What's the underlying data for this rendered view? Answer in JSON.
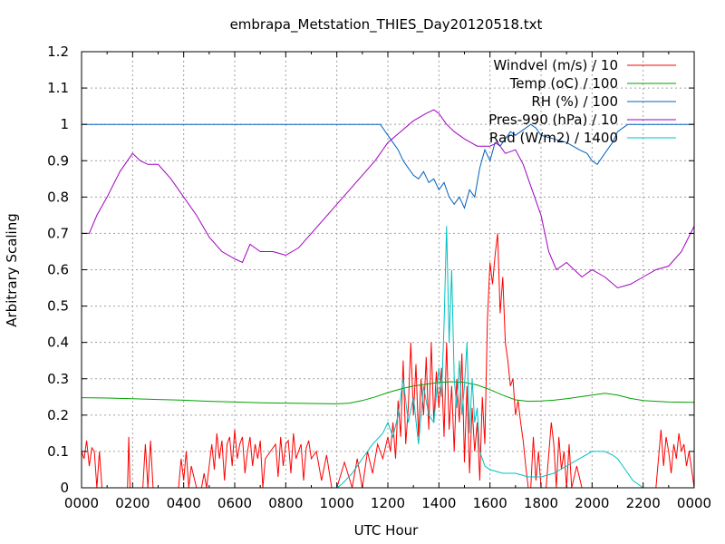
{
  "chart_data": {
    "type": "line",
    "title": "embrapa_Metstation_THIES_Day20120518.txt",
    "xlabel": "UTC Hour",
    "ylabel": "Arbitrary Scaling",
    "xlim": [
      0,
      24
    ],
    "ylim": [
      0,
      1.2
    ],
    "grid": true,
    "legend_position": "top-right",
    "x_ticks": [
      {
        "value": 0,
        "label": "0000"
      },
      {
        "value": 2,
        "label": "0200"
      },
      {
        "value": 4,
        "label": "0400"
      },
      {
        "value": 6,
        "label": "0600"
      },
      {
        "value": 8,
        "label": "0800"
      },
      {
        "value": 10,
        "label": "1000"
      },
      {
        "value": 12,
        "label": "1200"
      },
      {
        "value": 14,
        "label": "1400"
      },
      {
        "value": 16,
        "label": "1600"
      },
      {
        "value": 18,
        "label": "1800"
      },
      {
        "value": 20,
        "label": "2000"
      },
      {
        "value": 22,
        "label": "2200"
      },
      {
        "value": 24,
        "label": "0000"
      }
    ],
    "y_ticks": [
      {
        "value": 0,
        "label": "0"
      },
      {
        "value": 0.1,
        "label": "0.1"
      },
      {
        "value": 0.2,
        "label": "0.2"
      },
      {
        "value": 0.3,
        "label": "0.3"
      },
      {
        "value": 0.4,
        "label": "0.4"
      },
      {
        "value": 0.5,
        "label": "0.5"
      },
      {
        "value": 0.6,
        "label": "0.6"
      },
      {
        "value": 0.7,
        "label": "0.7"
      },
      {
        "value": 0.8,
        "label": "0.8"
      },
      {
        "value": 0.9,
        "label": "0.9"
      },
      {
        "value": 1,
        "label": "1"
      },
      {
        "value": 1.1,
        "label": "1.1"
      },
      {
        "value": 1.2,
        "label": "1.2"
      }
    ],
    "series": [
      {
        "name": "Windvel (m/s) / 10",
        "color": "#ff0000",
        "x": [
          0,
          0.1,
          0.2,
          0.3,
          0.4,
          0.5,
          0.6,
          0.7,
          0.8,
          1.0,
          1.2,
          1.5,
          1.8,
          1.85,
          1.9,
          2.0,
          2.2,
          2.4,
          2.5,
          2.6,
          2.7,
          2.8,
          3.0,
          3.3,
          3.6,
          3.8,
          3.9,
          4.0,
          4.1,
          4.2,
          4.3,
          4.5,
          4.7,
          4.8,
          4.9,
          5.0,
          5.1,
          5.2,
          5.3,
          5.4,
          5.5,
          5.6,
          5.7,
          5.8,
          5.9,
          6.0,
          6.1,
          6.2,
          6.3,
          6.4,
          6.5,
          6.6,
          6.7,
          6.8,
          6.9,
          7.0,
          7.1,
          7.2,
          7.4,
          7.6,
          7.7,
          7.8,
          7.9,
          8.0,
          8.1,
          8.2,
          8.3,
          8.4,
          8.5,
          8.6,
          8.7,
          8.8,
          8.9,
          9.0,
          9.2,
          9.4,
          9.6,
          9.8,
          10.0,
          10.3,
          10.6,
          10.8,
          11.0,
          11.2,
          11.4,
          11.6,
          11.8,
          12.0,
          12.1,
          12.2,
          12.3,
          12.4,
          12.5,
          12.6,
          12.7,
          12.8,
          12.9,
          13.0,
          13.1,
          13.2,
          13.3,
          13.4,
          13.5,
          13.6,
          13.7,
          13.8,
          13.9,
          14.0,
          14.1,
          14.2,
          14.3,
          14.4,
          14.5,
          14.6,
          14.7,
          14.8,
          14.9,
          15.0,
          15.1,
          15.2,
          15.3,
          15.4,
          15.5,
          15.6,
          15.7,
          15.8,
          15.9,
          16.0,
          16.1,
          16.2,
          16.3,
          16.4,
          16.5,
          16.6,
          16.7,
          16.8,
          16.9,
          17.0,
          17.1,
          17.2,
          17.3,
          17.4,
          17.5,
          17.6,
          17.7,
          17.8,
          17.9,
          18.0,
          18.2,
          18.4,
          18.5,
          18.6,
          18.7,
          18.8,
          18.9,
          19.0,
          19.1,
          19.2,
          19.4,
          19.6,
          19.8,
          20.0,
          20.2,
          20.5,
          21.0,
          21.5,
          22.0,
          22.5,
          22.7,
          22.8,
          22.9,
          23.0,
          23.1,
          23.2,
          23.3,
          23.4,
          23.5,
          23.6,
          23.7,
          23.8,
          24.0
        ],
        "y": [
          0.1,
          0.08,
          0.13,
          0.06,
          0.11,
          0.1,
          0.0,
          0.1,
          0.0,
          0.0,
          0.0,
          0.0,
          0.0,
          0.14,
          0.0,
          0.0,
          0.0,
          0.0,
          0.12,
          0.0,
          0.13,
          0.0,
          0.0,
          0.0,
          0.0,
          0.0,
          0.08,
          0.02,
          0.1,
          0.0,
          0.06,
          0.0,
          0.0,
          0.04,
          0.0,
          0.06,
          0.12,
          0.05,
          0.15,
          0.08,
          0.13,
          0.02,
          0.12,
          0.14,
          0.06,
          0.16,
          0.08,
          0.12,
          0.14,
          0.04,
          0.1,
          0.14,
          0.06,
          0.12,
          0.08,
          0.13,
          0.0,
          0.08,
          0.1,
          0.12,
          0.03,
          0.14,
          0.06,
          0.12,
          0.13,
          0.04,
          0.15,
          0.08,
          0.1,
          0.12,
          0.02,
          0.11,
          0.13,
          0.08,
          0.1,
          0.02,
          0.09,
          0.0,
          0.0,
          0.07,
          0.0,
          0.08,
          0.0,
          0.1,
          0.04,
          0.12,
          0.08,
          0.14,
          0.1,
          0.18,
          0.08,
          0.24,
          0.14,
          0.35,
          0.12,
          0.22,
          0.4,
          0.2,
          0.34,
          0.14,
          0.3,
          0.2,
          0.36,
          0.16,
          0.4,
          0.18,
          0.32,
          0.22,
          0.33,
          0.14,
          0.4,
          0.16,
          0.28,
          0.1,
          0.3,
          0.18,
          0.37,
          0.07,
          0.28,
          0.04,
          0.22,
          0.1,
          0.18,
          0.02,
          0.25,
          0.12,
          0.46,
          0.62,
          0.56,
          0.64,
          0.7,
          0.48,
          0.58,
          0.4,
          0.35,
          0.28,
          0.3,
          0.2,
          0.24,
          0.18,
          0.13,
          0.06,
          0.0,
          0.0,
          0.14,
          0.02,
          0.1,
          0.0,
          0.0,
          0.18,
          0.12,
          0.0,
          0.14,
          0.05,
          0.1,
          0.0,
          0.12,
          0.0,
          0.06,
          0.0,
          0.0,
          0.0,
          0.0,
          0.0,
          0.0,
          0.0,
          0.0,
          0.0,
          0.16,
          0.06,
          0.14,
          0.1,
          0.04,
          0.12,
          0.08,
          0.15,
          0.1,
          0.12,
          0.06,
          0.1,
          0.0
        ]
      },
      {
        "name": "Temp (oC) / 100",
        "color": "#00a000",
        "x": [
          0,
          1,
          2,
          3,
          4,
          5,
          6,
          7,
          8,
          9,
          10,
          10.5,
          11,
          11.5,
          12,
          12.5,
          13,
          13.5,
          14,
          14.5,
          15,
          15.5,
          16,
          16.5,
          17,
          17.5,
          18,
          18.5,
          19,
          19.5,
          20,
          20.5,
          21,
          21.5,
          22,
          22.5,
          23,
          24
        ],
        "y": [
          0.248,
          0.247,
          0.245,
          0.243,
          0.241,
          0.238,
          0.236,
          0.234,
          0.233,
          0.232,
          0.231,
          0.233,
          0.24,
          0.25,
          0.262,
          0.272,
          0.28,
          0.285,
          0.29,
          0.292,
          0.29,
          0.283,
          0.27,
          0.255,
          0.242,
          0.238,
          0.239,
          0.241,
          0.245,
          0.25,
          0.255,
          0.26,
          0.255,
          0.246,
          0.24,
          0.238,
          0.236,
          0.235
        ]
      },
      {
        "name": "RH (%) / 100",
        "color": "#0060c0",
        "x": [
          0,
          2,
          4,
          6,
          8,
          10,
          11,
          11.7,
          12,
          12.2,
          12.4,
          12.6,
          12.8,
          13.0,
          13.2,
          13.4,
          13.6,
          13.8,
          14.0,
          14.2,
          14.4,
          14.6,
          14.8,
          15.0,
          15.2,
          15.4,
          15.6,
          15.8,
          16.0,
          16.2,
          16.4,
          16.6,
          16.8,
          17.0,
          17.2,
          17.4,
          17.6,
          17.8,
          18.0,
          18.5,
          19.0,
          19.5,
          19.8,
          20.0,
          20.2,
          20.4,
          20.6,
          20.8,
          21.0,
          21.2,
          21.4,
          21.6,
          22,
          23,
          24
        ],
        "y": [
          1.0,
          1.0,
          1.0,
          1.0,
          1.0,
          1.0,
          1.0,
          1.0,
          0.97,
          0.95,
          0.93,
          0.9,
          0.88,
          0.86,
          0.85,
          0.87,
          0.84,
          0.85,
          0.82,
          0.84,
          0.8,
          0.78,
          0.8,
          0.77,
          0.82,
          0.8,
          0.88,
          0.93,
          0.9,
          0.95,
          0.94,
          0.96,
          0.98,
          0.97,
          0.98,
          0.99,
          1.0,
          0.99,
          0.97,
          0.96,
          0.95,
          0.93,
          0.92,
          0.9,
          0.89,
          0.91,
          0.93,
          0.95,
          0.98,
          0.99,
          1.0,
          1.0,
          1.0,
          1.0,
          1.0
        ]
      },
      {
        "name": "Pres-990 (hPa) / 10",
        "color": "#a000c0",
        "x": [
          0,
          0.3,
          0.6,
          1.0,
          1.5,
          2.0,
          2.3,
          2.6,
          3.0,
          3.5,
          4.0,
          4.5,
          5.0,
          5.5,
          6.0,
          6.3,
          6.6,
          7.0,
          7.5,
          8.0,
          8.5,
          9.0,
          9.5,
          10.0,
          10.5,
          11.0,
          11.5,
          12.0,
          12.5,
          13.0,
          13.5,
          13.8,
          14.0,
          14.3,
          14.6,
          15.0,
          15.5,
          16.0,
          16.3,
          16.6,
          17.0,
          17.3,
          17.6,
          18.0,
          18.3,
          18.6,
          19.0,
          19.3,
          19.6,
          20.0,
          20.5,
          21.0,
          21.5,
          22.0,
          22.5,
          23.0,
          23.5,
          24.0
        ],
        "y": [
          0.7,
          0.7,
          0.75,
          0.8,
          0.87,
          0.92,
          0.9,
          0.89,
          0.89,
          0.85,
          0.8,
          0.75,
          0.69,
          0.65,
          0.63,
          0.62,
          0.67,
          0.65,
          0.65,
          0.64,
          0.66,
          0.7,
          0.74,
          0.78,
          0.82,
          0.86,
          0.9,
          0.95,
          0.98,
          1.01,
          1.03,
          1.04,
          1.03,
          1.0,
          0.98,
          0.96,
          0.94,
          0.94,
          0.95,
          0.92,
          0.93,
          0.89,
          0.83,
          0.75,
          0.65,
          0.6,
          0.62,
          0.6,
          0.58,
          0.6,
          0.58,
          0.55,
          0.56,
          0.58,
          0.6,
          0.61,
          0.65,
          0.72
        ]
      },
      {
        "name": "Rad (W/m2) / 1400",
        "color": "#00c0c0",
        "x": [
          0,
          10,
          10.2,
          10.6,
          11.0,
          11.4,
          11.8,
          12.0,
          12.2,
          12.4,
          12.6,
          12.8,
          13.0,
          13.2,
          13.4,
          13.6,
          13.8,
          14.0,
          14.1,
          14.2,
          14.3,
          14.4,
          14.5,
          14.6,
          14.7,
          14.8,
          14.9,
          15.0,
          15.1,
          15.2,
          15.3,
          15.4,
          15.5,
          15.6,
          15.8,
          16.0,
          16.5,
          17.0,
          17.5,
          18.0,
          18.5,
          19.0,
          19.5,
          20.0,
          20.5,
          20.8,
          21.0,
          21.3,
          21.6,
          22.0,
          24
        ],
        "y": [
          0.0,
          0.0,
          0.01,
          0.04,
          0.08,
          0.12,
          0.15,
          0.18,
          0.14,
          0.2,
          0.3,
          0.18,
          0.25,
          0.12,
          0.28,
          0.2,
          0.18,
          0.33,
          0.25,
          0.45,
          0.72,
          0.4,
          0.6,
          0.3,
          0.22,
          0.35,
          0.2,
          0.28,
          0.4,
          0.15,
          0.3,
          0.18,
          0.22,
          0.1,
          0.06,
          0.05,
          0.04,
          0.04,
          0.03,
          0.03,
          0.04,
          0.06,
          0.08,
          0.1,
          0.1,
          0.09,
          0.08,
          0.05,
          0.02,
          0.0,
          0.0
        ]
      }
    ]
  }
}
